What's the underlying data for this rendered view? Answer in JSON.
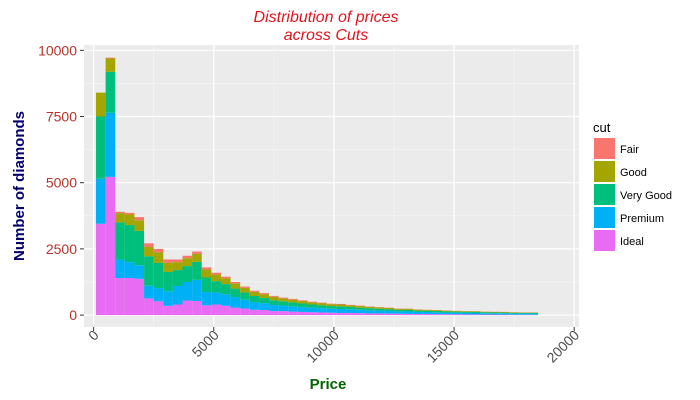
{
  "chart_data": {
    "type": "bar",
    "stacked": true,
    "title_line1": "Distribution of prices",
    "title_line2": "across Cuts",
    "xlabel": "Price",
    "ylabel": "Number of diamonds",
    "xlim": [
      -400,
      20200
    ],
    "ylim": [
      -450,
      10200
    ],
    "xticks": [
      0,
      5000,
      10000,
      15000,
      20000
    ],
    "xtick_labels": [
      "0",
      "5000",
      "10000",
      "15000",
      "20000"
    ],
    "yticks": [
      0,
      2500,
      5000,
      7500,
      10000
    ],
    "ytick_labels": [
      "0",
      "2500",
      "5000",
      "7500",
      "10000"
    ],
    "grid": true,
    "legend_title": "cut",
    "legend_position": "right",
    "bin_width": 400,
    "x": [
      300,
      700,
      1100,
      1500,
      1900,
      2300,
      2700,
      3100,
      3500,
      3900,
      4300,
      4700,
      5100,
      5500,
      5900,
      6300,
      6700,
      7100,
      7500,
      7900,
      8300,
      8700,
      9100,
      9500,
      9900,
      10300,
      10700,
      11100,
      11500,
      11900,
      12300,
      12700,
      13100,
      13500,
      13900,
      14300,
      14700,
      15100,
      15500,
      15900,
      16300,
      16700,
      17100,
      17500,
      17900,
      18300
    ],
    "series": [
      {
        "name": "Fair",
        "color": "#F8766D",
        "values": [
          0,
          30,
          50,
          60,
          120,
          140,
          130,
          120,
          100,
          90,
          90,
          80,
          70,
          60,
          50,
          45,
          40,
          40,
          35,
          30,
          30,
          25,
          25,
          20,
          20,
          20,
          15,
          15,
          15,
          10,
          10,
          10,
          10,
          10,
          5,
          5,
          5,
          5,
          5,
          5,
          5,
          5,
          5,
          5,
          5,
          5
        ]
      },
      {
        "name": "Good",
        "color": "#A3A500",
        "values": [
          900,
          500,
          350,
          400,
          400,
          350,
          400,
          350,
          300,
          300,
          300,
          300,
          250,
          220,
          200,
          180,
          160,
          140,
          130,
          110,
          100,
          90,
          80,
          80,
          70,
          70,
          60,
          60,
          50,
          50,
          45,
          40,
          40,
          35,
          30,
          30,
          30,
          25,
          25,
          25,
          20,
          20,
          20,
          20,
          15,
          15
        ]
      },
      {
        "name": "Very Good",
        "color": "#00BF7D",
        "values": [
          2350,
          1550,
          1400,
          1400,
          1300,
          1110,
          950,
          730,
          600,
          600,
          680,
          550,
          430,
          380,
          320,
          270,
          230,
          200,
          180,
          160,
          150,
          140,
          120,
          110,
          100,
          100,
          90,
          80,
          80,
          70,
          70,
          60,
          60,
          50,
          50,
          50,
          45,
          40,
          40,
          40,
          35,
          30,
          30,
          30,
          25,
          25
        ]
      },
      {
        "name": "Premium",
        "color": "#00B0F6",
        "values": [
          1700,
          2420,
          700,
          600,
          510,
          480,
          500,
          550,
          700,
          700,
          800,
          500,
          450,
          440,
          400,
          330,
          290,
          260,
          230,
          210,
          200,
          180,
          170,
          160,
          150,
          150,
          140,
          130,
          120,
          110,
          100,
          90,
          90,
          80,
          75,
          70,
          65,
          60,
          60,
          55,
          50,
          50,
          45,
          40,
          40,
          40
        ]
      },
      {
        "name": "Ideal",
        "color": "#E76BF3",
        "values": [
          3450,
          5220,
          1400,
          1400,
          1370,
          630,
          520,
          350,
          400,
          550,
          530,
          370,
          400,
          350,
          280,
          250,
          200,
          190,
          150,
          150,
          130,
          120,
          110,
          100,
          90,
          80,
          80,
          70,
          60,
          60,
          55,
          50,
          45,
          40,
          40,
          35,
          30,
          30,
          25,
          25,
          20,
          20,
          20,
          15,
          15,
          15
        ]
      }
    ]
  }
}
